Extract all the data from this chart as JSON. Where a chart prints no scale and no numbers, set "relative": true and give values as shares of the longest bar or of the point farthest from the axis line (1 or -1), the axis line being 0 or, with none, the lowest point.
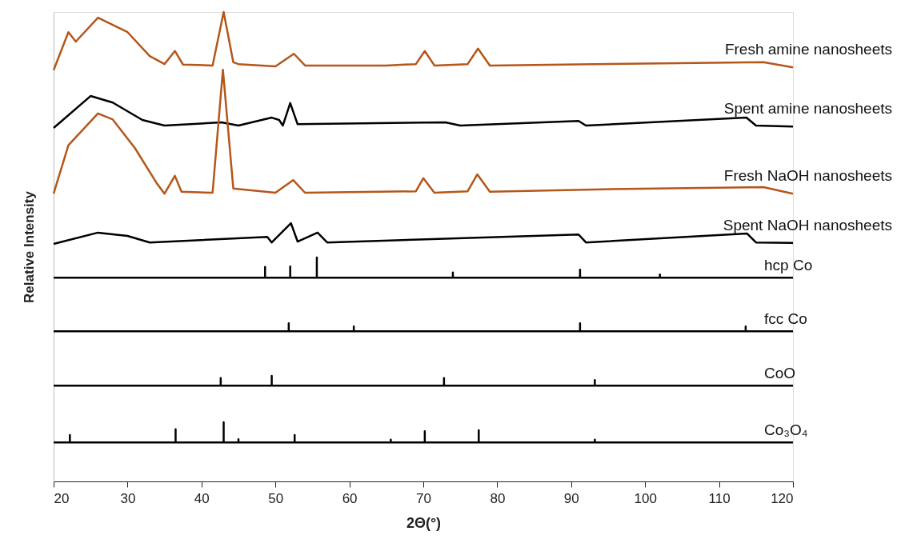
{
  "chart_data": {
    "type": "line",
    "relative": true,
    "xlabel": "2Θ(°)",
    "ylabel": "Relative Intensity",
    "xlim": [
      20,
      120
    ],
    "xticks": [
      20,
      30,
      40,
      50,
      60,
      70,
      80,
      90,
      100,
      110,
      120
    ],
    "grid": false,
    "marker": "none",
    "line_style": "solid",
    "series": [
      {
        "name": "Fresh amine nanosheets",
        "color": "#b5561a",
        "x": [
          20,
          22,
          23,
          26,
          30,
          33,
          35,
          36.4,
          37.5,
          41.5,
          43,
          44.3,
          45,
          50,
          52.5,
          54,
          65,
          69,
          70.2,
          71.5,
          76,
          77.4,
          79,
          93,
          116,
          120
        ],
        "values": [
          0.876,
          0.957,
          0.937,
          0.988,
          0.957,
          0.906,
          0.889,
          0.917,
          0.888,
          0.886,
          1.0,
          0.893,
          0.889,
          0.884,
          0.911,
          0.886,
          0.886,
          0.889,
          0.917,
          0.886,
          0.889,
          0.922,
          0.886,
          0.889,
          0.893,
          0.882
        ]
      },
      {
        "name": "Spent amine nanosheets",
        "color": "#000000",
        "x": [
          20,
          25,
          28,
          32,
          35,
          42.7,
          45,
          49.5,
          50.5,
          51,
          52,
          53,
          73,
          75,
          91,
          92,
          113.7,
          115,
          120
        ],
        "values": [
          0.753,
          0.821,
          0.807,
          0.77,
          0.758,
          0.765,
          0.758,
          0.775,
          0.77,
          0.758,
          0.806,
          0.761,
          0.765,
          0.758,
          0.768,
          0.758,
          0.775,
          0.758,
          0.756
        ]
      },
      {
        "name": "Fresh NaOH nanosheets",
        "color": "#b5561a",
        "x": [
          20,
          22,
          26,
          28,
          31,
          34,
          35,
          36.4,
          37.3,
          41.5,
          42.9,
          44.3,
          50,
          52.4,
          54,
          69,
          70,
          71.5,
          76,
          77.3,
          79,
          93,
          116,
          120
        ],
        "values": [
          0.613,
          0.716,
          0.784,
          0.771,
          0.71,
          0.634,
          0.613,
          0.651,
          0.617,
          0.615,
          0.877,
          0.624,
          0.615,
          0.642,
          0.615,
          0.618,
          0.646,
          0.615,
          0.618,
          0.654,
          0.617,
          0.622,
          0.627,
          0.613
        ]
      },
      {
        "name": "Spent NaOH nanosheets",
        "color": "#000000",
        "x": [
          20,
          26,
          30,
          33,
          48.9,
          49.5,
          52.1,
          53,
          55.7,
          57,
          91,
          92,
          113.8,
          115,
          120
        ],
        "values": [
          0.506,
          0.53,
          0.523,
          0.509,
          0.521,
          0.509,
          0.55,
          0.511,
          0.53,
          0.509,
          0.526,
          0.509,
          0.528,
          0.509,
          0.508
        ]
      },
      {
        "name": "hcp Co",
        "color": "#000000",
        "x": [
          20,
          48.6,
          48.6,
          48.6,
          52,
          52,
          52,
          55.6,
          55.6,
          55.6,
          74,
          74,
          74,
          91.2,
          91.2,
          91.2,
          102,
          102,
          102,
          120
        ],
        "values": [
          0.434,
          0.434,
          0.457,
          0.434,
          0.434,
          0.458,
          0.434,
          0.434,
          0.477,
          0.434,
          0.434,
          0.445,
          0.434,
          0.434,
          0.451,
          0.434,
          0.434,
          0.441,
          0.434,
          0.434
        ]
      },
      {
        "name": "fcc Co",
        "color": "#000000",
        "x": [
          20,
          51.8,
          51.8,
          51.8,
          60.6,
          60.6,
          60.6,
          91.2,
          91.2,
          91.2,
          113.6,
          113.6,
          113.6,
          120
        ],
        "values": [
          0.32,
          0.32,
          0.337,
          0.32,
          0.32,
          0.33,
          0.32,
          0.32,
          0.337,
          0.32,
          0.32,
          0.33,
          0.32,
          0.32
        ]
      },
      {
        "name": "CoO",
        "color": "#000000",
        "x": [
          20,
          42.6,
          42.6,
          42.6,
          49.5,
          49.5,
          49.5,
          72.8,
          72.8,
          72.8,
          93.2,
          93.2,
          93.2,
          120
        ],
        "values": [
          0.204,
          0.204,
          0.22,
          0.204,
          0.204,
          0.225,
          0.204,
          0.204,
          0.22,
          0.204,
          0.204,
          0.216,
          0.204,
          0.204
        ]
      },
      {
        "name": "Co₃O₄",
        "color": "#000000",
        "x": [
          20,
          22.2,
          22.2,
          22.2,
          36.5,
          36.5,
          36.5,
          43,
          43,
          43,
          45,
          45,
          45,
          52.6,
          52.6,
          52.6,
          65.6,
          65.6,
          65.6,
          70.2,
          70.2,
          70.2,
          77.5,
          77.5,
          77.5,
          93.2,
          93.2,
          93.2,
          120
        ],
        "values": [
          0.083,
          0.083,
          0.099,
          0.083,
          0.083,
          0.111,
          0.083,
          0.083,
          0.126,
          0.083,
          0.083,
          0.09,
          0.083,
          0.083,
          0.099,
          0.083,
          0.083,
          0.089,
          0.083,
          0.083,
          0.107,
          0.083,
          0.083,
          0.109,
          0.083,
          0.083,
          0.089,
          0.083,
          0.083
        ]
      }
    ]
  }
}
